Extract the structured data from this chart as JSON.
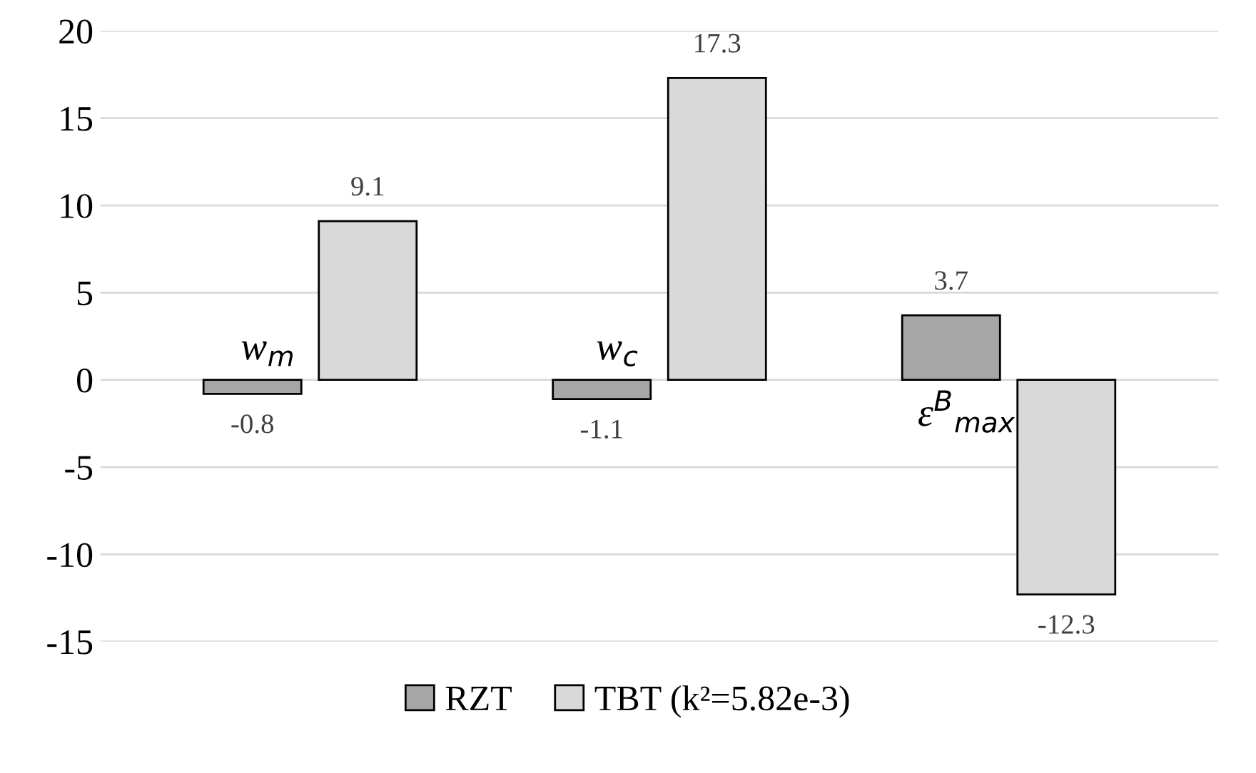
{
  "chart_data": {
    "type": "bar",
    "categories": [
      "w$_{m}$",
      "w$_{c}$",
      "ε$^{B}$$_{max}$"
    ],
    "series": [
      {
        "name": "RZT",
        "color": "#a6a6a6",
        "values": [
          -0.8,
          -1.1,
          3.7
        ]
      },
      {
        "name": "TBT (k²=5.82e-3)",
        "color": "#d9d9d9",
        "values": [
          9.1,
          17.3,
          -12.3
        ]
      }
    ],
    "ylim": [
      -15,
      20
    ],
    "yticks": [
      -15,
      -10,
      -5,
      0,
      5,
      10,
      15,
      20
    ],
    "grid": "y",
    "legend": "bottom",
    "data_labels": true
  }
}
